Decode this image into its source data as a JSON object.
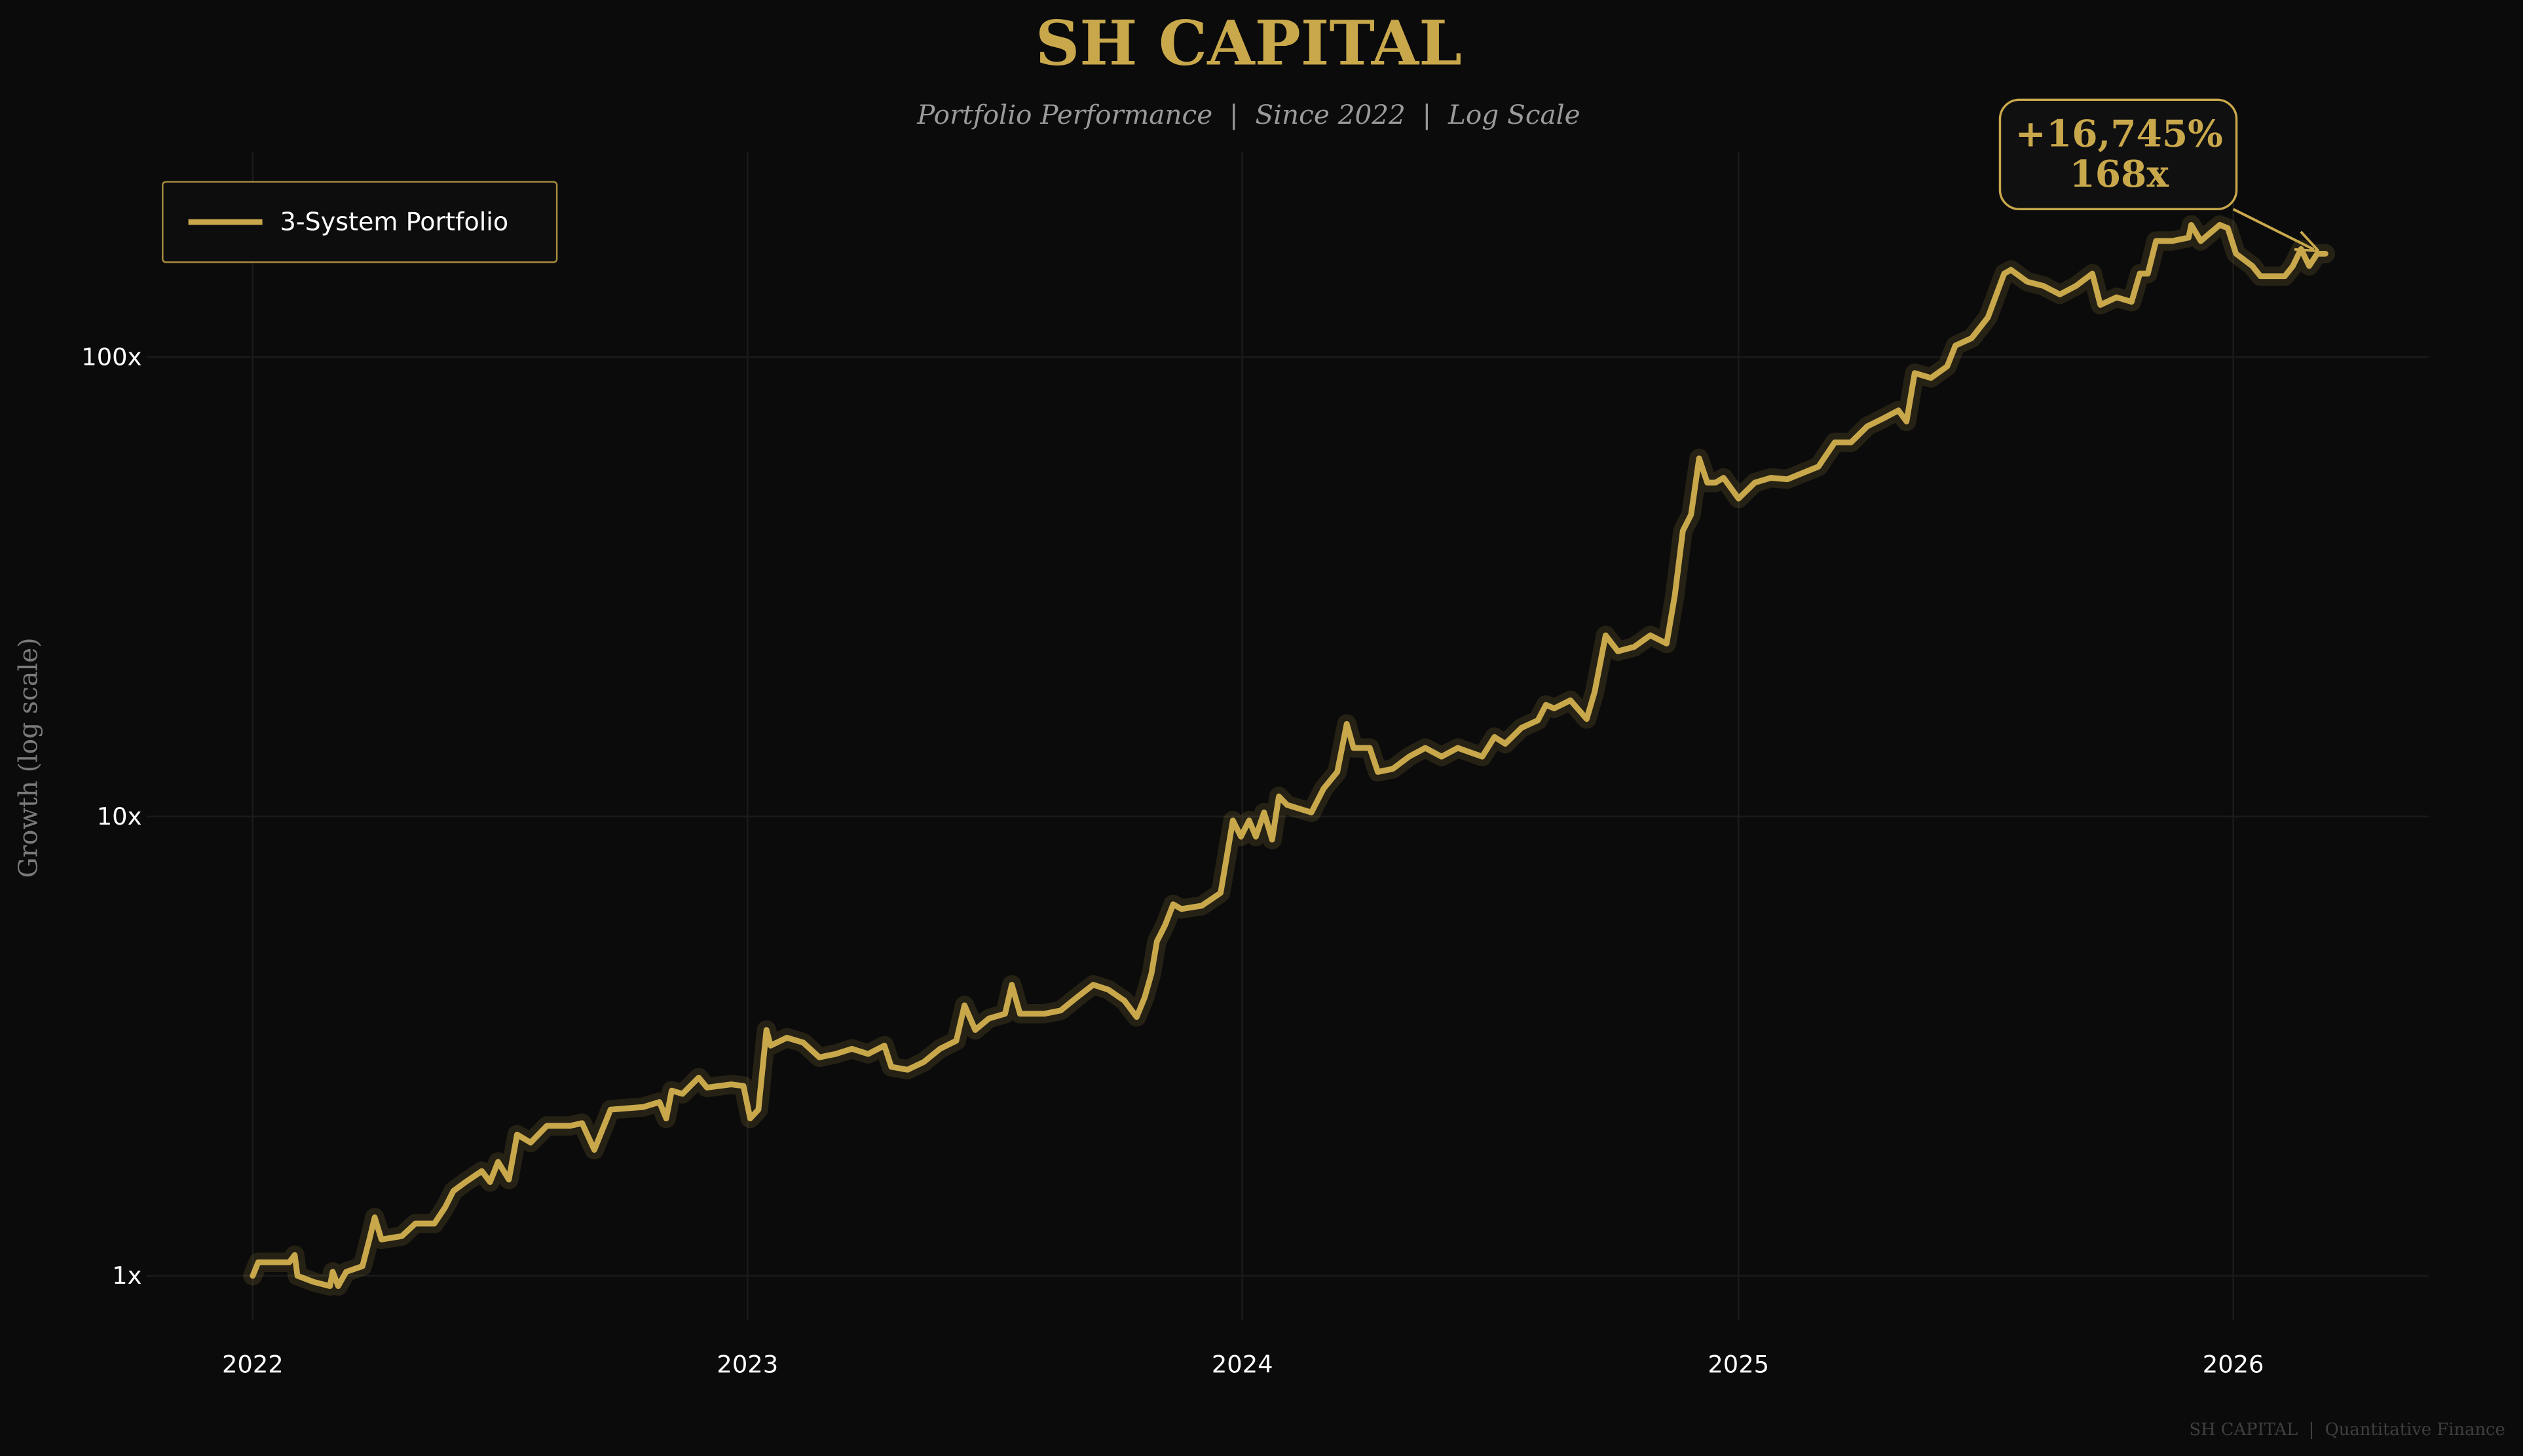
{
  "header": {
    "title": "SH CAPITAL",
    "subtitle": "Portfolio Performance  |  Since 2022  |  Log Scale"
  },
  "footer": "SH CAPITAL  |  Quantitative Finance",
  "colors": {
    "background": "#0b0b0b",
    "accent": "#c9a84c",
    "grid": "#1b1b1b",
    "tick_text": "#ffffff",
    "muted_text": "#9a9a9a"
  },
  "annotation": {
    "line1": "+16,745%",
    "line2": "168x"
  },
  "chart_data": {
    "type": "line",
    "title": "SH CAPITAL",
    "subtitle": "Portfolio Performance  |  Since 2022  |  Log Scale",
    "xlabel": "",
    "ylabel": "Growth (log scale)",
    "yscale": "log",
    "ylim": [
      0.8,
      280
    ],
    "xlim": [
      "2021-10-15",
      "2026-05-25"
    ],
    "grid": true,
    "legend": "top-left",
    "x_ticks": [
      {
        "date": "2022-01-01",
        "label": "2022"
      },
      {
        "date": "2023-01-01",
        "label": "2023"
      },
      {
        "date": "2024-01-01",
        "label": "2024"
      },
      {
        "date": "2025-01-01",
        "label": "2025"
      },
      {
        "date": "2026-01-01",
        "label": "2026"
      }
    ],
    "y_ticks": [
      {
        "value": 1,
        "label": "1x"
      },
      {
        "value": 10,
        "label": "10x"
      },
      {
        "value": 100,
        "label": "100x"
      }
    ],
    "series": [
      {
        "name": "3-System Portfolio",
        "color": "#c9a84c",
        "points": [
          [
            "2022-01-01",
            1.0
          ],
          [
            "2022-01-05",
            1.07
          ],
          [
            "2022-01-28",
            1.07
          ],
          [
            "2022-02-01",
            1.11
          ],
          [
            "2022-02-03",
            1.0
          ],
          [
            "2022-02-15",
            0.97
          ],
          [
            "2022-02-27",
            0.95
          ],
          [
            "2022-03-01",
            1.02
          ],
          [
            "2022-03-05",
            0.95
          ],
          [
            "2022-03-11",
            1.02
          ],
          [
            "2022-03-23",
            1.05
          ],
          [
            "2022-03-28",
            1.2
          ],
          [
            "2022-04-01",
            1.34
          ],
          [
            "2022-04-06",
            1.2
          ],
          [
            "2022-04-21",
            1.22
          ],
          [
            "2022-05-01",
            1.3
          ],
          [
            "2022-05-15",
            1.3
          ],
          [
            "2022-05-23",
            1.41
          ],
          [
            "2022-05-29",
            1.53
          ],
          [
            "2022-06-07",
            1.6
          ],
          [
            "2022-06-19",
            1.69
          ],
          [
            "2022-06-25",
            1.6
          ],
          [
            "2022-07-01",
            1.77
          ],
          [
            "2022-07-09",
            1.62
          ],
          [
            "2022-07-15",
            2.03
          ],
          [
            "2022-07-25",
            1.95
          ],
          [
            "2022-08-06",
            2.12
          ],
          [
            "2022-08-23",
            2.12
          ],
          [
            "2022-09-01",
            2.15
          ],
          [
            "2022-09-10",
            1.88
          ],
          [
            "2022-09-22",
            2.3
          ],
          [
            "2022-10-16",
            2.33
          ],
          [
            "2022-10-28",
            2.39
          ],
          [
            "2022-11-02",
            2.2
          ],
          [
            "2022-11-06",
            2.53
          ],
          [
            "2022-11-14",
            2.49
          ],
          [
            "2022-11-26",
            2.7
          ],
          [
            "2022-12-02",
            2.57
          ],
          [
            "2022-12-20",
            2.61
          ],
          [
            "2022-12-29",
            2.59
          ],
          [
            "2023-01-03",
            2.2
          ],
          [
            "2023-01-09",
            2.3
          ],
          [
            "2023-01-15",
            3.43
          ],
          [
            "2023-01-18",
            3.17
          ],
          [
            "2023-01-30",
            3.3
          ],
          [
            "2023-02-11",
            3.22
          ],
          [
            "2023-02-23",
            2.99
          ],
          [
            "2023-03-07",
            3.04
          ],
          [
            "2023-03-19",
            3.12
          ],
          [
            "2023-03-31",
            3.04
          ],
          [
            "2023-04-12",
            3.17
          ],
          [
            "2023-04-17",
            2.85
          ],
          [
            "2023-04-29",
            2.81
          ],
          [
            "2023-05-11",
            2.92
          ],
          [
            "2023-05-23",
            3.12
          ],
          [
            "2023-06-04",
            3.25
          ],
          [
            "2023-06-10",
            3.88
          ],
          [
            "2023-06-18",
            3.43
          ],
          [
            "2023-06-28",
            3.63
          ],
          [
            "2023-07-10",
            3.72
          ],
          [
            "2023-07-15",
            4.3
          ],
          [
            "2023-07-21",
            3.72
          ],
          [
            "2023-08-08",
            3.72
          ],
          [
            "2023-08-20",
            3.78
          ],
          [
            "2023-09-01",
            4.04
          ],
          [
            "2023-09-13",
            4.3
          ],
          [
            "2023-09-24",
            4.2
          ],
          [
            "2023-10-06",
            3.97
          ],
          [
            "2023-10-15",
            3.66
          ],
          [
            "2023-10-21",
            4.04
          ],
          [
            "2023-10-26",
            4.55
          ],
          [
            "2023-10-30",
            5.35
          ],
          [
            "2023-11-05",
            5.8
          ],
          [
            "2023-11-11",
            6.44
          ],
          [
            "2023-11-17",
            6.29
          ],
          [
            "2023-12-02",
            6.39
          ],
          [
            "2023-12-16",
            6.82
          ],
          [
            "2023-12-25",
            9.8
          ],
          [
            "2023-12-31",
            9.04
          ],
          [
            "2024-01-06",
            9.8
          ],
          [
            "2024-01-11",
            9.04
          ],
          [
            "2024-01-17",
            10.2
          ],
          [
            "2024-01-23",
            8.9
          ],
          [
            "2024-01-28",
            11.06
          ],
          [
            "2024-02-03",
            10.6
          ],
          [
            "2024-02-21",
            10.2
          ],
          [
            "2024-03-01",
            11.5
          ],
          [
            "2024-03-11",
            12.5
          ],
          [
            "2024-03-18",
            15.9
          ],
          [
            "2024-03-23",
            14.1
          ],
          [
            "2024-04-04",
            14.1
          ],
          [
            "2024-04-10",
            12.5
          ],
          [
            "2024-04-21",
            12.7
          ],
          [
            "2024-05-03",
            13.5
          ],
          [
            "2024-05-15",
            14.1
          ],
          [
            "2024-05-27",
            13.5
          ],
          [
            "2024-06-08",
            14.1
          ],
          [
            "2024-06-26",
            13.5
          ],
          [
            "2024-07-05",
            14.9
          ],
          [
            "2024-07-13",
            14.4
          ],
          [
            "2024-07-25",
            15.6
          ],
          [
            "2024-08-06",
            16.2
          ],
          [
            "2024-08-12",
            17.5
          ],
          [
            "2024-08-18",
            17.2
          ],
          [
            "2024-08-30",
            17.9
          ],
          [
            "2024-09-11",
            16.3
          ],
          [
            "2024-09-17",
            18.7
          ],
          [
            "2024-09-25",
            24.8
          ],
          [
            "2024-10-04",
            22.9
          ],
          [
            "2024-10-16",
            23.4
          ],
          [
            "2024-10-28",
            24.8
          ],
          [
            "2024-11-09",
            23.8
          ],
          [
            "2024-11-15",
            30.3
          ],
          [
            "2024-11-21",
            41.9
          ],
          [
            "2024-11-27",
            45.4
          ],
          [
            "2024-12-03",
            60.2
          ],
          [
            "2024-12-09",
            53.3
          ],
          [
            "2024-12-15",
            53.3
          ],
          [
            "2024-12-21",
            54.6
          ],
          [
            "2025-01-01",
            49.2
          ],
          [
            "2025-01-13",
            53.3
          ],
          [
            "2025-01-25",
            54.6
          ],
          [
            "2025-02-06",
            54.2
          ],
          [
            "2025-03-01",
            57.8
          ],
          [
            "2025-03-13",
            65.2
          ],
          [
            "2025-03-25",
            65.2
          ],
          [
            "2025-04-06",
            70.7
          ],
          [
            "2025-04-18",
            73.6
          ],
          [
            "2025-04-29",
            76.6
          ],
          [
            "2025-05-05",
            72.4
          ],
          [
            "2025-05-11",
            92.3
          ],
          [
            "2025-05-23",
            90.1
          ],
          [
            "2025-06-04",
            95.5
          ],
          [
            "2025-06-10",
            106
          ],
          [
            "2025-06-22",
            110
          ],
          [
            "2025-07-04",
            122
          ],
          [
            "2025-07-16",
            152
          ],
          [
            "2025-07-21",
            155
          ],
          [
            "2025-08-02",
            146
          ],
          [
            "2025-08-14",
            143
          ],
          [
            "2025-08-26",
            137
          ],
          [
            "2025-09-07",
            143
          ],
          [
            "2025-09-19",
            152
          ],
          [
            "2025-09-25",
            130
          ],
          [
            "2025-10-07",
            135
          ],
          [
            "2025-10-18",
            132
          ],
          [
            "2025-10-24",
            152
          ],
          [
            "2025-10-30",
            152
          ],
          [
            "2025-11-05",
            179
          ],
          [
            "2025-11-17",
            179
          ],
          [
            "2025-11-29",
            182
          ],
          [
            "2025-12-01",
            194
          ],
          [
            "2025-12-08",
            179
          ],
          [
            "2025-12-22",
            194
          ],
          [
            "2025-12-28",
            191
          ],
          [
            "2026-01-03",
            168
          ],
          [
            "2026-01-15",
            158
          ],
          [
            "2026-01-21",
            150
          ],
          [
            "2026-02-08",
            150
          ],
          [
            "2026-02-14",
            158
          ],
          [
            "2026-02-20",
            172
          ],
          [
            "2026-02-26",
            158
          ],
          [
            "2026-03-04",
            168
          ],
          [
            "2026-03-10",
            168
          ]
        ]
      }
    ],
    "annotation": {
      "text": [
        "+16,745%",
        "168x"
      ],
      "points_to": "last"
    }
  }
}
